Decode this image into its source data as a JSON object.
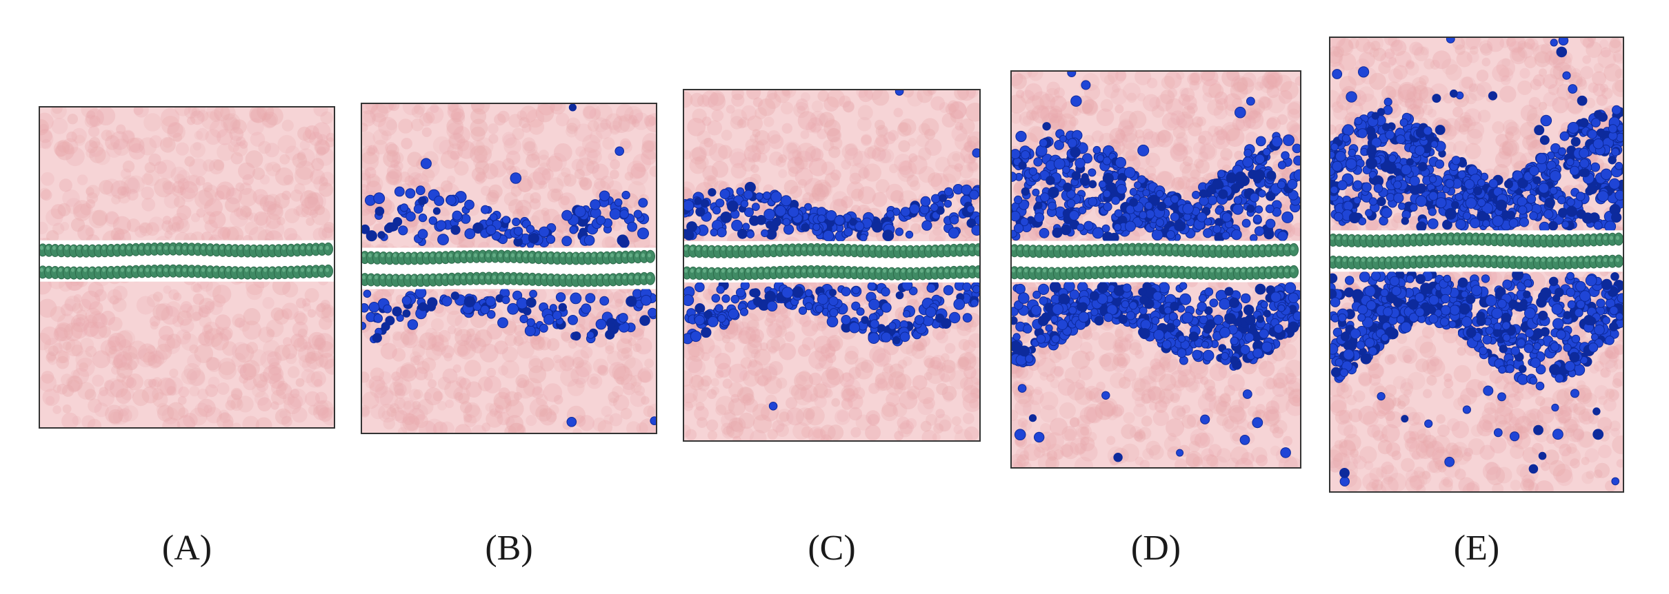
{
  "figure": {
    "panels": [
      {
        "id": "A",
        "label": "(A)"
      },
      {
        "id": "B",
        "label": "(B)"
      },
      {
        "id": "C",
        "label": "(C)"
      },
      {
        "id": "D",
        "label": "(D)"
      },
      {
        "id": "E",
        "label": "(E)"
      }
    ],
    "colors": {
      "background_water": "#f6d4d6",
      "water_blob": "#e9a9ad",
      "sheet": "#3f8a64",
      "sheet_highlight": "#7cc39b",
      "molecules": "#1f45d6",
      "molecules_dark": "#0d2a9c",
      "frame": "#333333"
    }
  }
}
